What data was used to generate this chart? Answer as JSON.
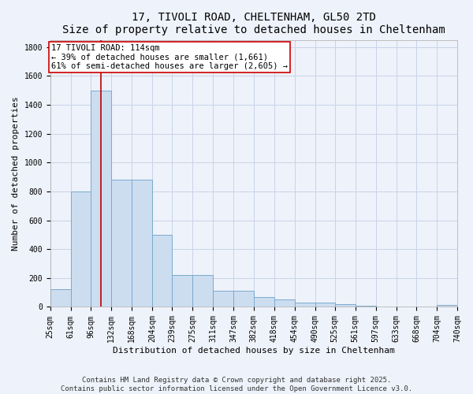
{
  "title_line1": "17, TIVOLI ROAD, CHELTENHAM, GL50 2TD",
  "title_line2": "Size of property relative to detached houses in Cheltenham",
  "xlabel": "Distribution of detached houses by size in Cheltenham",
  "ylabel": "Number of detached properties",
  "bar_edges": [
    25,
    61,
    96,
    132,
    168,
    204,
    239,
    275,
    311,
    347,
    382,
    418,
    454,
    490,
    525,
    561,
    597,
    633,
    668,
    704,
    740
  ],
  "bar_heights": [
    120,
    800,
    1500,
    880,
    880,
    500,
    220,
    220,
    110,
    110,
    70,
    50,
    30,
    30,
    20,
    10,
    0,
    0,
    0,
    15
  ],
  "bar_color": "#ccddf0",
  "bar_edge_color": "#7aaace",
  "grid_color": "#c8d4e8",
  "background_color": "#eef2fa",
  "vline_x": 114,
  "vline_color": "#bb0000",
  "annotation_text": "17 TIVOLI ROAD: 114sqm\n← 39% of detached houses are smaller (1,661)\n61% of semi-detached houses are larger (2,605) →",
  "annotation_box_color": "#ffffff",
  "annotation_border_color": "#cc0000",
  "ylim": [
    0,
    1850
  ],
  "yticks": [
    0,
    200,
    400,
    600,
    800,
    1000,
    1200,
    1400,
    1600,
    1800
  ],
  "footer_line1": "Contains HM Land Registry data © Crown copyright and database right 2025.",
  "footer_line2": "Contains public sector information licensed under the Open Government Licence v3.0.",
  "title_fontsize": 10,
  "subtitle_fontsize": 9,
  "axis_label_fontsize": 8,
  "tick_fontsize": 7,
  "annotation_fontsize": 7.5,
  "footer_fontsize": 6.5
}
